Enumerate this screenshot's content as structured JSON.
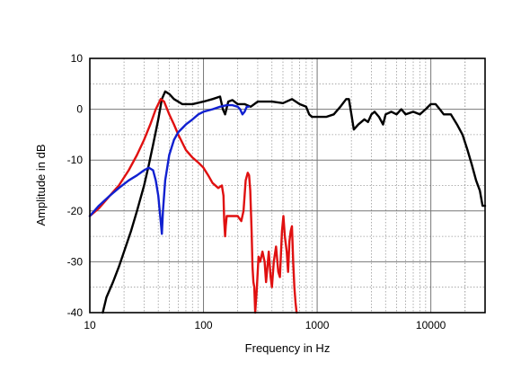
{
  "chart_data": {
    "type": "line",
    "title": "",
    "xlabel": "Frequency in Hz",
    "ylabel": "Amplitude in dB",
    "x_scale": "log",
    "xlim": [
      10,
      30000
    ],
    "ylim": [
      -40,
      10
    ],
    "x_ticks": [
      10,
      100,
      1000,
      10000
    ],
    "x_tick_labels": [
      "10",
      "100",
      "1000",
      "10000"
    ],
    "y_ticks": [
      10,
      0,
      -10,
      -20,
      -30,
      -40
    ],
    "y_tick_labels": [
      "10",
      "0",
      "-10",
      "-20",
      "-30",
      "-40"
    ],
    "grid": "on (solid major, dotted minor)",
    "legend": "none",
    "series": [
      {
        "color": "#000000",
        "points": [
          [
            13,
            -40
          ],
          [
            14,
            -37
          ],
          [
            16,
            -34
          ],
          [
            18,
            -31
          ],
          [
            20,
            -28
          ],
          [
            23,
            -24
          ],
          [
            26,
            -20
          ],
          [
            30,
            -15
          ],
          [
            33,
            -11
          ],
          [
            36,
            -7
          ],
          [
            40,
            -2
          ],
          [
            43,
            2
          ],
          [
            46,
            3.5
          ],
          [
            50,
            3
          ],
          [
            55,
            2
          ],
          [
            65,
            1
          ],
          [
            80,
            1
          ],
          [
            100,
            1.5
          ],
          [
            120,
            2
          ],
          [
            140,
            2.5
          ],
          [
            148,
            0
          ],
          [
            155,
            -1
          ],
          [
            165,
            1.5
          ],
          [
            180,
            1.8
          ],
          [
            200,
            1
          ],
          [
            230,
            1
          ],
          [
            260,
            0.5
          ],
          [
            300,
            1.5
          ],
          [
            400,
            1.5
          ],
          [
            500,
            1.2
          ],
          [
            600,
            2
          ],
          [
            700,
            1
          ],
          [
            800,
            0.5
          ],
          [
            850,
            -1
          ],
          [
            900,
            -1.5
          ],
          [
            1000,
            -1.5
          ],
          [
            1200,
            -1.5
          ],
          [
            1400,
            -1
          ],
          [
            1600,
            0.5
          ],
          [
            1800,
            2
          ],
          [
            1900,
            2
          ],
          [
            2000,
            -1
          ],
          [
            2100,
            -4
          ],
          [
            2300,
            -3
          ],
          [
            2600,
            -2
          ],
          [
            2800,
            -2.5
          ],
          [
            3000,
            -1
          ],
          [
            3200,
            -0.5
          ],
          [
            3500,
            -1.5
          ],
          [
            3800,
            -3
          ],
          [
            4000,
            -1
          ],
          [
            4500,
            -0.5
          ],
          [
            5000,
            -1
          ],
          [
            5500,
            0
          ],
          [
            6000,
            -1
          ],
          [
            7000,
            -0.5
          ],
          [
            8000,
            -1
          ],
          [
            9000,
            0
          ],
          [
            10000,
            1
          ],
          [
            11000,
            1
          ],
          [
            12000,
            0
          ],
          [
            13000,
            -1
          ],
          [
            15000,
            -1
          ],
          [
            17000,
            -3
          ],
          [
            19000,
            -5
          ],
          [
            21000,
            -8
          ],
          [
            23000,
            -11
          ],
          [
            25000,
            -14
          ],
          [
            27000,
            -16
          ],
          [
            28500,
            -19
          ],
          [
            30000,
            -19
          ]
        ]
      },
      {
        "color": "#e01010",
        "points": [
          [
            10,
            -21
          ],
          [
            12,
            -19.5
          ],
          [
            15,
            -17
          ],
          [
            18,
            -15
          ],
          [
            22,
            -12
          ],
          [
            26,
            -9
          ],
          [
            30,
            -6
          ],
          [
            34,
            -3
          ],
          [
            38,
            0
          ],
          [
            42,
            2
          ],
          [
            45,
            1.5
          ],
          [
            50,
            -1
          ],
          [
            55,
            -3
          ],
          [
            60,
            -5
          ],
          [
            70,
            -8
          ],
          [
            80,
            -9.5
          ],
          [
            90,
            -10.5
          ],
          [
            100,
            -11.5
          ],
          [
            110,
            -13
          ],
          [
            120,
            -14.5
          ],
          [
            135,
            -15.5
          ],
          [
            145,
            -15
          ],
          [
            150,
            -17
          ],
          [
            152,
            -22
          ],
          [
            155,
            -25
          ],
          [
            157,
            -23
          ],
          [
            160,
            -21
          ],
          [
            200,
            -21
          ],
          [
            215,
            -22
          ],
          [
            225,
            -20
          ],
          [
            235,
            -14
          ],
          [
            245,
            -12.5
          ],
          [
            252,
            -13
          ],
          [
            258,
            -16
          ],
          [
            265,
            -24
          ],
          [
            270,
            -31
          ],
          [
            275,
            -34
          ],
          [
            280,
            -35
          ],
          [
            285,
            -40
          ],
          [
            295,
            -35
          ],
          [
            305,
            -29
          ],
          [
            315,
            -30
          ],
          [
            330,
            -28
          ],
          [
            345,
            -30
          ],
          [
            355,
            -34
          ],
          [
            365,
            -31
          ],
          [
            375,
            -28
          ],
          [
            390,
            -33
          ],
          [
            400,
            -35
          ],
          [
            415,
            -30
          ],
          [
            435,
            -27
          ],
          [
            455,
            -32
          ],
          [
            470,
            -33
          ],
          [
            490,
            -24
          ],
          [
            505,
            -21
          ],
          [
            520,
            -25
          ],
          [
            540,
            -28
          ],
          [
            555,
            -32
          ],
          [
            570,
            -26
          ],
          [
            585,
            -24
          ],
          [
            600,
            -23
          ],
          [
            615,
            -30
          ],
          [
            630,
            -35
          ],
          [
            645,
            -38
          ],
          [
            660,
            -40
          ]
        ]
      },
      {
        "color": "#1020d0",
        "points": [
          [
            10,
            -21
          ],
          [
            12,
            -19
          ],
          [
            15,
            -17
          ],
          [
            18,
            -15.5
          ],
          [
            22,
            -14
          ],
          [
            26,
            -13
          ],
          [
            30,
            -12
          ],
          [
            33,
            -11.5
          ],
          [
            36,
            -12
          ],
          [
            38,
            -14
          ],
          [
            40,
            -17
          ],
          [
            42,
            -22
          ],
          [
            43,
            -24.5
          ],
          [
            44,
            -20
          ],
          [
            46,
            -14
          ],
          [
            50,
            -9
          ],
          [
            55,
            -6
          ],
          [
            60,
            -4.5
          ],
          [
            70,
            -3
          ],
          [
            80,
            -2
          ],
          [
            90,
            -1
          ],
          [
            100,
            -0.5
          ],
          [
            120,
            0
          ],
          [
            140,
            0.5
          ],
          [
            160,
            0.8
          ],
          [
            180,
            0.8
          ],
          [
            200,
            0.5
          ],
          [
            210,
            0
          ],
          [
            220,
            -1
          ],
          [
            230,
            -0.5
          ],
          [
            240,
            0.5
          ],
          [
            250,
            0.5
          ]
        ]
      }
    ]
  }
}
